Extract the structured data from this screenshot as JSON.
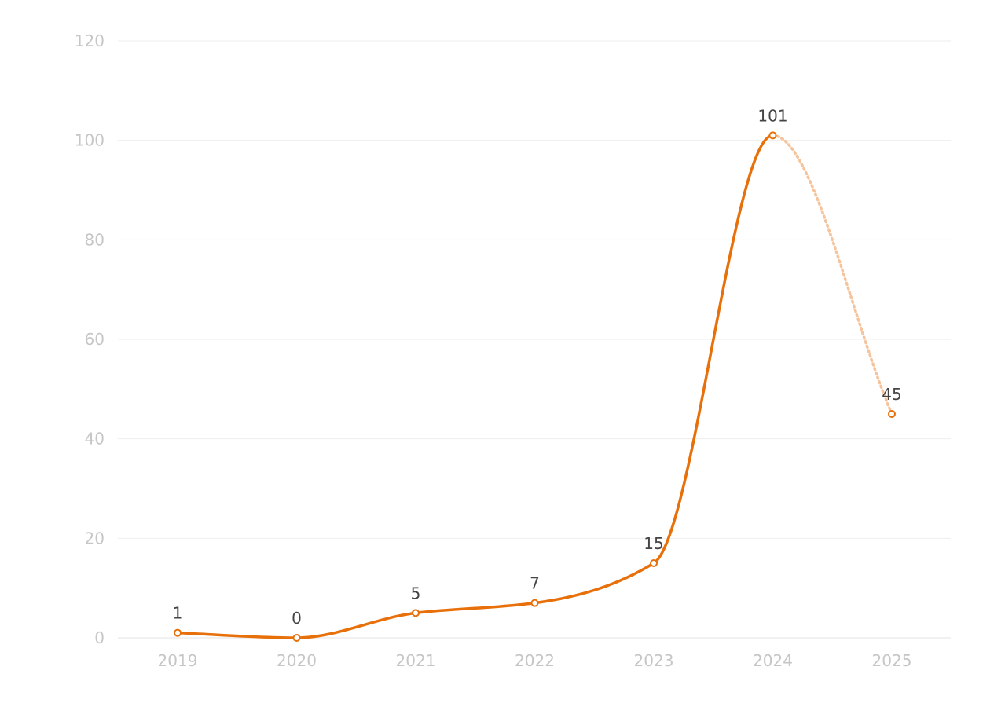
{
  "chart_data": {
    "type": "line",
    "title": "",
    "xlabel": "",
    "ylabel": "",
    "categories": [
      "2019",
      "2020",
      "2021",
      "2022",
      "2023",
      "2024",
      "2025"
    ],
    "series": [
      {
        "values": [
          1,
          0,
          5,
          7,
          15,
          101,
          45
        ],
        "data_labels": [
          "1",
          "0",
          "5",
          "7",
          "15",
          "101",
          "45"
        ],
        "color": "#e8700a",
        "projected_color": "#f5c49c",
        "projected_from_index": 5
      }
    ],
    "ylim": [
      0,
      120
    ],
    "yticks": [
      0,
      20,
      40,
      60,
      80,
      100,
      120
    ],
    "ytick_labels": [
      "0",
      "20",
      "40",
      "60",
      "80",
      "100",
      "120"
    ],
    "grid": true,
    "legend": "none",
    "smooth": true
  }
}
